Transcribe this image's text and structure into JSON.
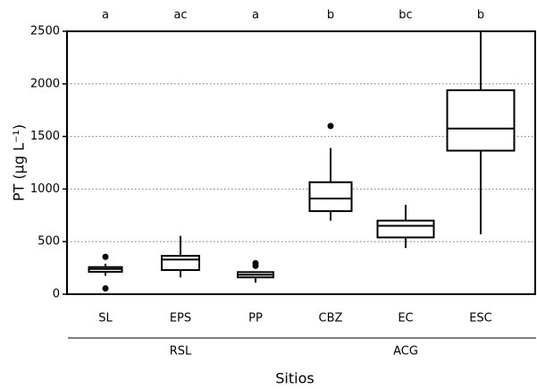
{
  "chart_data": {
    "type": "box",
    "y_label": "PT (µg L⁻¹)",
    "x_label": "Sitios",
    "ylim": [
      0,
      2500
    ],
    "yticks": [
      0,
      500,
      1000,
      1500,
      2000,
      2500
    ],
    "grid": true,
    "groups": [
      {
        "label": "RSL",
        "boxes": [
          {
            "name": "SL",
            "letter": "a",
            "whislo": 175,
            "q1": 213,
            "med": 240,
            "q3": 258,
            "whishi": 290,
            "fliers": [
              355,
              55
            ]
          },
          {
            "name": "EPS",
            "letter": "ac",
            "whislo": 160,
            "q1": 230,
            "med": 330,
            "q3": 365,
            "whishi": 555,
            "fliers": []
          },
          {
            "name": "PP",
            "letter": "a",
            "whislo": 110,
            "q1": 160,
            "med": 185,
            "q3": 210,
            "whishi": 215,
            "fliers": [
              295,
              270
            ]
          }
        ]
      },
      {
        "label": "ACG",
        "boxes": [
          {
            "name": "CBZ",
            "letter": "b",
            "whislo": 700,
            "q1": 790,
            "med": 910,
            "q3": 1065,
            "whishi": 1390,
            "fliers": [
              1600
            ]
          },
          {
            "name": "EC",
            "letter": "bc",
            "whislo": 440,
            "q1": 540,
            "med": 650,
            "q3": 700,
            "whishi": 850,
            "fliers": []
          },
          {
            "name": "ESC",
            "letter": "b",
            "whislo": 570,
            "q1": 1365,
            "med": 1575,
            "q3": 1940,
            "whishi": 2500,
            "fliers": []
          }
        ]
      }
    ]
  }
}
